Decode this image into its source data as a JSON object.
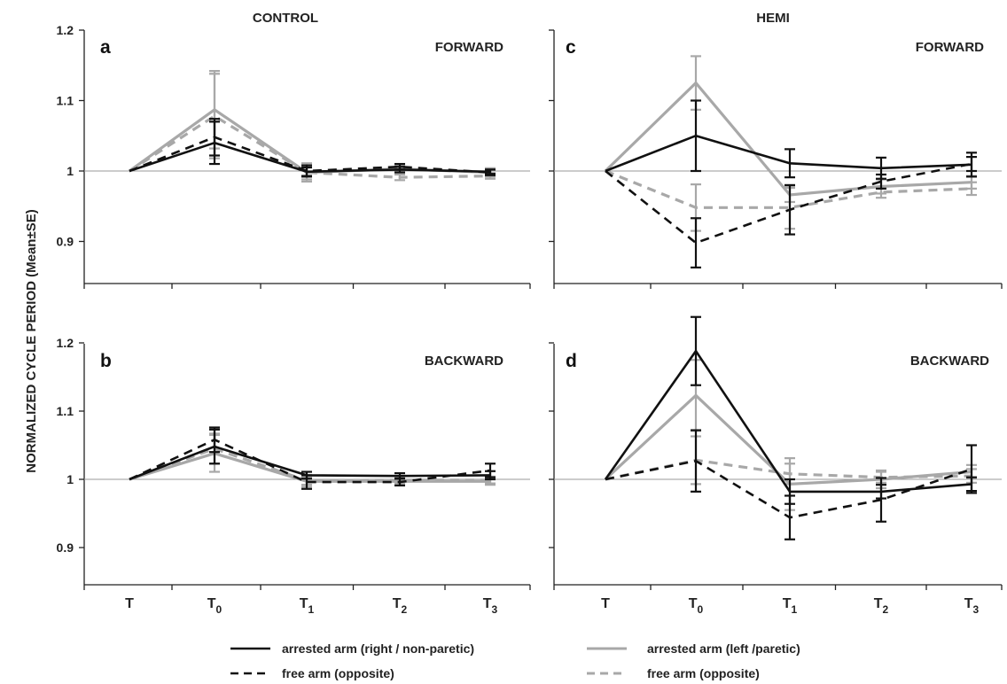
{
  "figure": {
    "ylabel": "NORMALIZED CYCLE PERIOD  (Mean±SE)",
    "col_titles": [
      "CONTROL",
      "HEMI"
    ]
  },
  "legend": [
    {
      "label": "arrested arm (right / non-paretic)",
      "color": "#111111",
      "dash": false
    },
    {
      "label": "free arm (opposite)",
      "color": "#111111",
      "dash": true
    },
    {
      "label": "arrested arm (left /paretic)",
      "color": "#a8a8a8",
      "dash": false
    },
    {
      "label": "free arm (opposite)",
      "color": "#a8a8a8",
      "dash": true
    }
  ],
  "chart_data": [
    {
      "type": "line",
      "panel": "a",
      "column": "CONTROL",
      "condition": "FORWARD",
      "categories": [
        {
          "base": "T",
          "sub": ""
        },
        {
          "base": "T",
          "sub": "0"
        },
        {
          "base": "T",
          "sub": "1"
        },
        {
          "base": "T",
          "sub": "2"
        },
        {
          "base": "T",
          "sub": "3"
        }
      ],
      "ylim": [
        0.85,
        1.2
      ],
      "yticks": [
        "1.2",
        "1.1",
        "1",
        "0.9"
      ],
      "show_ytick_labels": true,
      "reference_line": 1.0,
      "series": [
        {
          "color": "#a8a8a8",
          "dash": false,
          "values": [
            1.0,
            1.087,
            0.998,
            1.003,
            0.998
          ],
          "se": [
            0,
            0.055,
            0.013,
            0.005,
            0.006
          ]
        },
        {
          "color": "#a8a8a8",
          "dash": true,
          "values": [
            1.0,
            1.078,
            0.998,
            0.991,
            0.993
          ],
          "se": [
            0,
            0.06,
            0.01,
            0.004,
            0.004
          ]
        },
        {
          "color": "#111111",
          "dash": true,
          "values": [
            1.0,
            1.048,
            1.0,
            1.006,
            0.998
          ],
          "se": [
            0,
            0.026,
            0.008,
            0.004,
            0.004
          ]
        },
        {
          "color": "#111111",
          "dash": false,
          "values": [
            1.0,
            1.04,
            0.999,
            1.002,
            0.999
          ],
          "se": [
            0,
            0.03,
            0.006,
            0.004,
            0.003
          ]
        }
      ]
    },
    {
      "type": "line",
      "panel": "c",
      "column": "HEMI",
      "condition": "FORWARD",
      "categories": [
        {
          "base": "T",
          "sub": ""
        },
        {
          "base": "T",
          "sub": "0"
        },
        {
          "base": "T",
          "sub": "1"
        },
        {
          "base": "T",
          "sub": "2"
        },
        {
          "base": "T",
          "sub": "3"
        }
      ],
      "ylim": [
        0.85,
        1.2
      ],
      "yticks": [
        "1.2",
        "1.1",
        "1",
        "0.9"
      ],
      "show_ytick_labels": false,
      "reference_line": 1.0,
      "series": [
        {
          "color": "#a8a8a8",
          "dash": false,
          "values": [
            1.0,
            1.125,
            0.966,
            0.978,
            0.984
          ],
          "se": [
            0,
            0.038,
            0.01,
            0.01,
            0.009
          ]
        },
        {
          "color": "#a8a8a8",
          "dash": true,
          "values": [
            1.0,
            0.948,
            0.948,
            0.97,
            0.975
          ],
          "se": [
            0,
            0.033,
            0.03,
            0.008,
            0.009
          ]
        },
        {
          "color": "#111111",
          "dash": false,
          "values": [
            1.0,
            1.05,
            1.011,
            1.004,
            1.009
          ],
          "se": [
            0,
            0.05,
            0.02,
            0.015,
            0.017
          ]
        },
        {
          "color": "#111111",
          "dash": true,
          "values": [
            1.0,
            0.898,
            0.945,
            0.985,
            1.01
          ],
          "se": [
            0,
            0.035,
            0.035,
            0.01,
            0.01
          ]
        }
      ]
    },
    {
      "type": "line",
      "panel": "b",
      "column": "CONTROL",
      "condition": "BACKWARD",
      "categories": [
        {
          "base": "T",
          "sub": ""
        },
        {
          "base": "T",
          "sub": "0"
        },
        {
          "base": "T",
          "sub": "1"
        },
        {
          "base": "T",
          "sub": "2"
        },
        {
          "base": "T",
          "sub": "3"
        }
      ],
      "ylim": [
        0.85,
        1.23
      ],
      "yticks": [
        "1.2",
        "1.1",
        "1",
        "0.9"
      ],
      "show_ytick_labels": true,
      "reference_line": 1.0,
      "series": [
        {
          "color": "#a8a8a8",
          "dash": false,
          "values": [
            1.0,
            1.038,
            0.997,
            0.997,
            0.997
          ],
          "se": [
            0,
            0.027,
            0.008,
            0.005,
            0.005
          ]
        },
        {
          "color": "#a8a8a8",
          "dash": true,
          "values": [
            1.0,
            1.045,
            0.998,
            0.999,
            0.999
          ],
          "se": [
            0,
            0.022,
            0.006,
            0.005,
            0.005
          ]
        },
        {
          "color": "#111111",
          "dash": true,
          "values": [
            1.0,
            1.058,
            0.996,
            0.996,
            1.013
          ],
          "se": [
            0,
            0.018,
            0.01,
            0.005,
            0.01
          ]
        },
        {
          "color": "#111111",
          "dash": false,
          "values": [
            1.0,
            1.048,
            1.006,
            1.005,
            1.006
          ],
          "se": [
            0,
            0.025,
            0.005,
            0.004,
            0.006
          ]
        }
      ]
    },
    {
      "type": "line",
      "panel": "d",
      "column": "HEMI",
      "condition": "BACKWARD",
      "categories": [
        {
          "base": "T",
          "sub": ""
        },
        {
          "base": "T",
          "sub": "0"
        },
        {
          "base": "T",
          "sub": "1"
        },
        {
          "base": "T",
          "sub": "2"
        },
        {
          "base": "T",
          "sub": "3"
        }
      ],
      "ylim": [
        0.85,
        1.23
      ],
      "yticks": [
        "1.2",
        "1.1",
        "1",
        "0.9"
      ],
      "show_ytick_labels": false,
      "reference_line": 1.0,
      "series": [
        {
          "color": "#a8a8a8",
          "dash": false,
          "values": [
            1.0,
            1.123,
            0.993,
            1.0,
            1.011
          ],
          "se": [
            0,
            0.052,
            0.038,
            0.013,
            0.01
          ]
        },
        {
          "color": "#a8a8a8",
          "dash": true,
          "values": [
            1.0,
            1.028,
            1.008,
            1.003,
            1.005
          ],
          "se": [
            0,
            0.035,
            0.015,
            0.008,
            0.01
          ]
        },
        {
          "color": "#111111",
          "dash": false,
          "values": [
            1.0,
            1.188,
            0.982,
            0.982,
            0.993
          ],
          "se": [
            0,
            0.05,
            0.018,
            0.01,
            0.01
          ]
        },
        {
          "color": "#111111",
          "dash": true,
          "values": [
            1.0,
            1.027,
            0.944,
            0.97,
            1.015
          ],
          "se": [
            0,
            0.045,
            0.032,
            0.032,
            0.035
          ]
        }
      ]
    }
  ]
}
